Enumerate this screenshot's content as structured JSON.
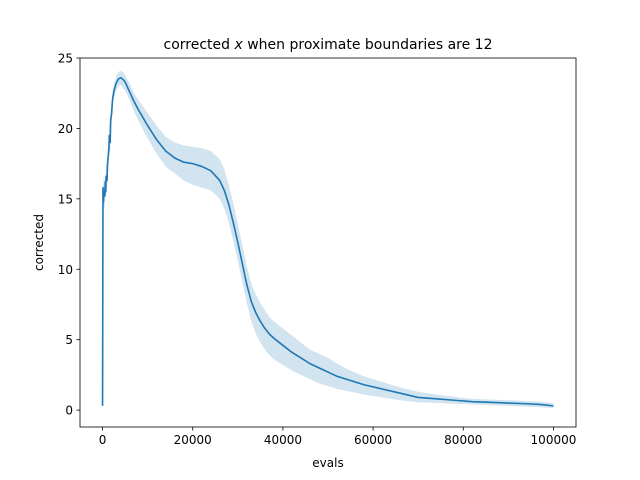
{
  "chart_data": {
    "type": "line",
    "title_prefix": "corrected ",
    "title_var": "x",
    "title_suffix": " when proximate boundaries are 12",
    "xlabel": "evals",
    "ylabel": "corrected",
    "xlim": [
      -5000,
      105000
    ],
    "ylim": [
      -1.2,
      25.0
    ],
    "xticks": [
      0,
      20000,
      40000,
      60000,
      80000,
      100000
    ],
    "xtick_labels": [
      "0",
      "20000",
      "40000",
      "60000",
      "80000",
      "100000"
    ],
    "yticks": [
      0,
      5,
      10,
      15,
      20,
      25
    ],
    "ytick_labels": [
      "0",
      "5",
      "10",
      "15",
      "20",
      "25"
    ],
    "grid": false,
    "line_color": "#1f77b4",
    "band_color": "#1f77b4",
    "series": [
      {
        "x": [
          0,
          100,
          200,
          300,
          500,
          600,
          700,
          800,
          1000,
          1100,
          1200,
          1400,
          1500,
          1700,
          1800,
          2000,
          2200,
          2500,
          3000,
          3500,
          4000,
          4500,
          5000,
          6000,
          7000,
          8000,
          10000,
          12000,
          14000,
          16000,
          18000,
          20000,
          22000,
          24000,
          26000,
          27000,
          28000,
          29000,
          30000,
          31000,
          32000,
          33000,
          34000,
          35000,
          36000,
          37000,
          38000,
          40000,
          42000,
          44000,
          46000,
          48000,
          50000,
          52000,
          55000,
          58000,
          62000,
          66000,
          70000,
          74000,
          78000,
          82000,
          86000,
          90000,
          94000,
          97000,
          100000
        ],
        "y": [
          0.3,
          15.8,
          14.8,
          15.6,
          15.2,
          16.2,
          15.5,
          16.6,
          16.3,
          17.5,
          17.8,
          18.5,
          19.5,
          19.0,
          20.6,
          21.0,
          22.0,
          22.6,
          23.2,
          23.5,
          23.6,
          23.5,
          23.3,
          22.6,
          21.9,
          21.3,
          20.2,
          19.2,
          18.4,
          17.9,
          17.6,
          17.5,
          17.3,
          17.0,
          16.3,
          15.6,
          14.6,
          13.3,
          11.9,
          10.4,
          8.9,
          7.7,
          6.9,
          6.3,
          5.8,
          5.4,
          5.1,
          4.6,
          4.1,
          3.7,
          3.3,
          3.0,
          2.7,
          2.4,
          2.1,
          1.8,
          1.5,
          1.2,
          0.9,
          0.8,
          0.7,
          0.6,
          0.55,
          0.5,
          0.45,
          0.4,
          0.3
        ],
        "lower": [
          0.2,
          14.6,
          13.8,
          14.6,
          14.2,
          15.4,
          14.7,
          15.8,
          15.5,
          16.7,
          17.0,
          17.7,
          18.7,
          18.3,
          19.9,
          20.4,
          21.4,
          22.1,
          22.7,
          23.0,
          23.1,
          22.9,
          22.7,
          22.0,
          21.2,
          20.5,
          19.3,
          18.2,
          17.3,
          16.8,
          16.3,
          16.0,
          15.8,
          15.6,
          15.0,
          14.3,
          13.3,
          12.0,
          10.6,
          9.1,
          7.6,
          6.3,
          5.4,
          4.8,
          4.3,
          3.9,
          3.6,
          3.2,
          2.8,
          2.5,
          2.2,
          1.9,
          1.7,
          1.5,
          1.3,
          1.1,
          0.9,
          0.7,
          0.55,
          0.5,
          0.45,
          0.4,
          0.35,
          0.3,
          0.25,
          0.2,
          0.15
        ],
        "upper": [
          0.4,
          17.0,
          15.8,
          16.6,
          16.2,
          17.0,
          16.3,
          17.4,
          17.1,
          18.3,
          18.6,
          19.3,
          20.3,
          19.7,
          21.3,
          21.6,
          22.6,
          23.1,
          23.7,
          24.0,
          24.1,
          24.0,
          23.8,
          23.2,
          22.5,
          22.0,
          21.1,
          20.2,
          19.4,
          19.0,
          18.8,
          18.7,
          18.6,
          18.4,
          17.8,
          17.1,
          16.0,
          14.7,
          13.2,
          11.7,
          10.2,
          9.0,
          8.2,
          7.6,
          7.1,
          6.6,
          6.3,
          5.8,
          5.3,
          4.8,
          4.3,
          4.0,
          3.7,
          3.3,
          2.8,
          2.4,
          2.0,
          1.6,
          1.3,
          1.1,
          0.95,
          0.8,
          0.75,
          0.7,
          0.65,
          0.6,
          0.5
        ]
      }
    ]
  }
}
